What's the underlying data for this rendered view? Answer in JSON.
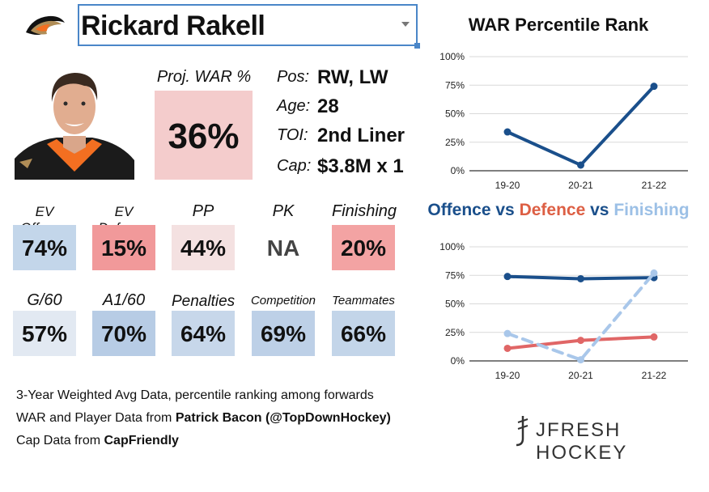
{
  "header": {
    "player_name": "Rickard Rakell",
    "team_logo_icon": "ducks-logo-icon"
  },
  "photo": {
    "icon": "player-photo-icon"
  },
  "proj_war": {
    "label": "Proj. WAR %",
    "value": "36%",
    "color": "#f4cccc"
  },
  "info": [
    {
      "label": "Pos:",
      "value": "RW, LW"
    },
    {
      "label": "Age:",
      "value": "28"
    },
    {
      "label": "TOI:",
      "value": "2nd Liner"
    },
    {
      "label": "Cap:",
      "value": "$3.8M x 1"
    }
  ],
  "stats_row1": [
    {
      "label": "EV Offence",
      "value": "74%",
      "color": "#c3d6ea"
    },
    {
      "label": "EV Defence",
      "value": "15%",
      "color": "#f1999a"
    },
    {
      "label": "PP",
      "value": "44%",
      "color": "#f4e1e1"
    },
    {
      "label": "PK",
      "value": "NA",
      "color": "#ffffff"
    },
    {
      "label": "Finishing",
      "value": "20%",
      "color": "#f3a3a3"
    }
  ],
  "stats_row2": [
    {
      "label": "G/60",
      "value": "57%",
      "color": "#e2e9f2"
    },
    {
      "label": "A1/60",
      "value": "70%",
      "color": "#b7cce5"
    },
    {
      "label": "Penalties",
      "value": "64%",
      "color": "#c7d7ea"
    },
    {
      "label": "Competition",
      "value": "69%",
      "color": "#bdd0e7"
    },
    {
      "label": "Teammates",
      "value": "66%",
      "color": "#c3d5e9"
    }
  ],
  "footer": {
    "line1": "3-Year Weighted Avg Data, percentile ranking among forwards",
    "line2_prefix": "WAR and Player Data from ",
    "line2_bold": "Patrick Bacon (@TopDownHockey)",
    "line3_prefix": "Cap Data from ",
    "line3_bold": "CapFriendly"
  },
  "brand": {
    "text": "JFRESH HOCKEY",
    "icon": "jfresh-logo-icon"
  },
  "chart_data": [
    {
      "type": "line",
      "title": "WAR Percentile Rank",
      "categories": [
        "19-20",
        "20-21",
        "21-22"
      ],
      "series": [
        {
          "values": [
            34,
            5,
            74
          ],
          "color": "#1a4f8b",
          "dashed": false
        }
      ],
      "ylim": [
        0,
        100
      ],
      "yticks": [
        "0%",
        "25%",
        "50%",
        "75%",
        "100%"
      ],
      "grid": true
    },
    {
      "type": "line",
      "title_parts": [
        {
          "text": "Offence",
          "color": "#1a4f8b"
        },
        {
          "text": " vs ",
          "color": "#1a4f8b"
        },
        {
          "text": "Defence",
          "color": "#dd5f44"
        },
        {
          "text": " vs ",
          "color": "#1a4f8b"
        },
        {
          "text": "Finishing",
          "color": "#9cc0e6"
        }
      ],
      "categories": [
        "19-20",
        "20-21",
        "21-22"
      ],
      "series": [
        {
          "name": "Offence",
          "values": [
            74,
            72,
            73
          ],
          "color": "#1a4f8b",
          "dashed": false
        },
        {
          "name": "Defence",
          "values": [
            11,
            18,
            21
          ],
          "color": "#e06666",
          "dashed": false
        },
        {
          "name": "Finishing",
          "values": [
            24,
            1,
            77
          ],
          "color": "#a9c7ea",
          "dashed": true
        }
      ],
      "ylim": [
        0,
        100
      ],
      "yticks": [
        "0%",
        "25%",
        "50%",
        "75%",
        "100%"
      ],
      "grid": true
    }
  ]
}
